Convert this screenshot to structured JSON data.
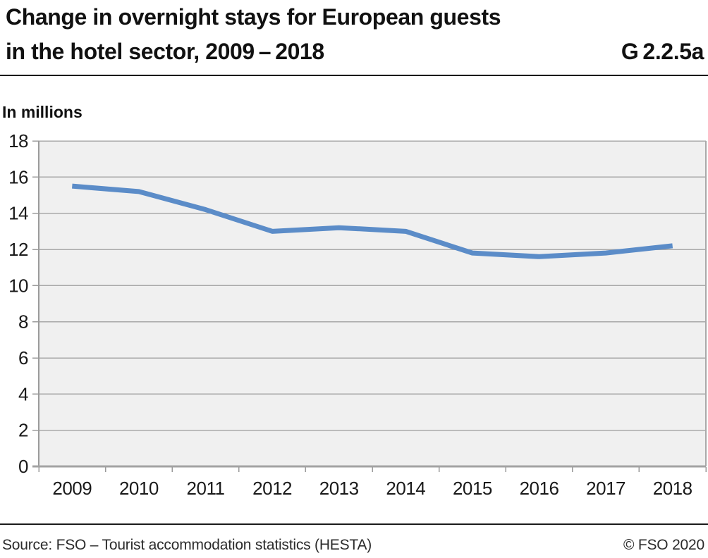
{
  "header": {
    "title_line1": "Change in overnight stays for European guests",
    "title_line2": "in the hotel sector, 2009 – 2018",
    "figure_number": "G 2.2.5a"
  },
  "chart_data": {
    "type": "line",
    "title": "Change in overnight stays for European guests in the hotel sector, 2009–2018",
    "unit_label": "In millions",
    "categories": [
      "2009",
      "2010",
      "2011",
      "2012",
      "2013",
      "2014",
      "2015",
      "2016",
      "2017",
      "2018"
    ],
    "series": [
      {
        "name": "Overnight stays of European guests in the hotel sector",
        "color": "#5b8cc8",
        "values": [
          15.5,
          15.2,
          14.2,
          13.0,
          13.2,
          13.0,
          11.8,
          11.6,
          11.8,
          12.2
        ]
      }
    ],
    "ylim": [
      0,
      18
    ],
    "ytick_step": 2,
    "grid": true,
    "legend_position": "none",
    "plot_bg": "#f0f0f0",
    "grid_color": "#a9a9a9",
    "axis_color": "#9b9b9b",
    "bottom_axis_color": "#a3a3a3",
    "tick_label_color": "#1a1a1a"
  },
  "footer": {
    "source": "Source: FSO – Tourist accommodation statistics (HESTA)",
    "copyright": "© FSO 2020"
  }
}
